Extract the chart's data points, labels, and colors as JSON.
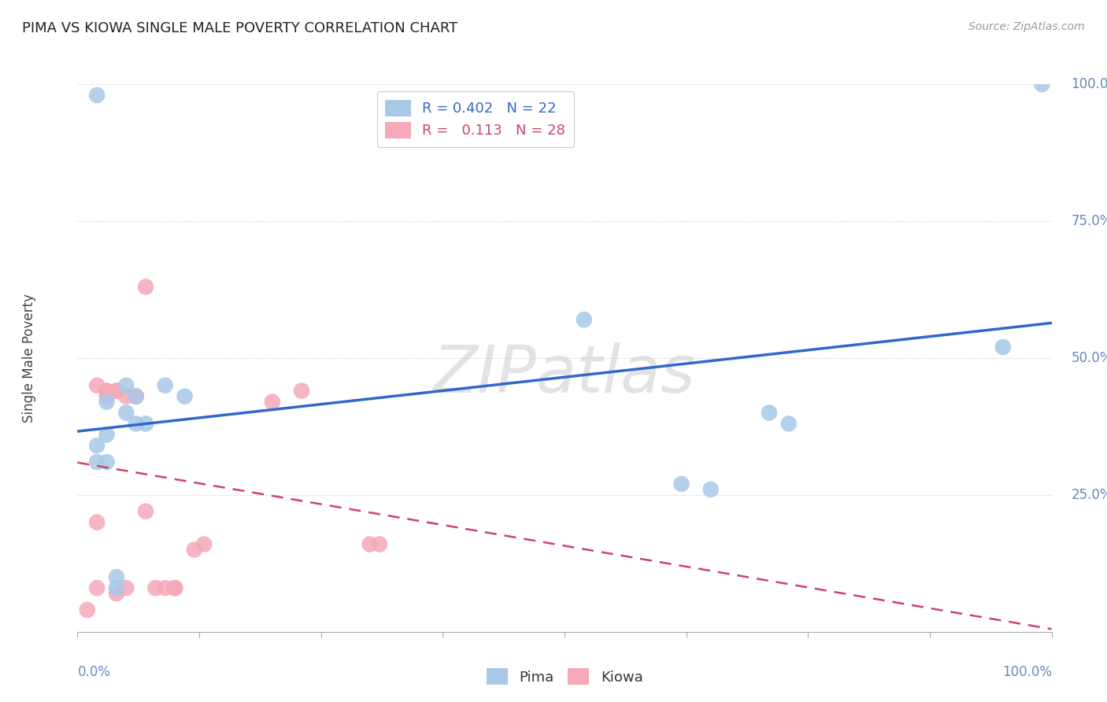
{
  "title": "PIMA VS KIOWA SINGLE MALE POVERTY CORRELATION CHART",
  "source_text": "Source: ZipAtlas.com",
  "ylabel": "Single Male Poverty",
  "pima_R": 0.402,
  "pima_N": 22,
  "kiowa_R": 0.113,
  "kiowa_N": 28,
  "pima_color": "#A8C8E8",
  "kiowa_color": "#F4A8B8",
  "pima_line_color": "#3366CC",
  "kiowa_line_color": "#CC4466",
  "watermark_text": "ZIPatlas",
  "xlim": [
    0.0,
    1.0
  ],
  "ylim": [
    0.0,
    1.0
  ],
  "pima_x": [
    0.02,
    0.02,
    0.02,
    0.03,
    0.03,
    0.03,
    0.04,
    0.04,
    0.05,
    0.05,
    0.06,
    0.06,
    0.07,
    0.09,
    0.11,
    0.52,
    0.62,
    0.65,
    0.71,
    0.73,
    0.95,
    0.99
  ],
  "pima_y": [
    0.98,
    0.34,
    0.31,
    0.42,
    0.36,
    0.31,
    0.1,
    0.08,
    0.45,
    0.4,
    0.43,
    0.38,
    0.38,
    0.45,
    0.43,
    0.57,
    0.27,
    0.26,
    0.4,
    0.38,
    0.52,
    1.0
  ],
  "kiowa_x": [
    0.01,
    0.02,
    0.02,
    0.02,
    0.03,
    0.03,
    0.03,
    0.04,
    0.04,
    0.04,
    0.05,
    0.05,
    0.06,
    0.06,
    0.06,
    0.06,
    0.07,
    0.07,
    0.08,
    0.09,
    0.1,
    0.1,
    0.12,
    0.13,
    0.2,
    0.23,
    0.3,
    0.31
  ],
  "kiowa_y": [
    0.04,
    0.08,
    0.2,
    0.45,
    0.44,
    0.44,
    0.43,
    0.44,
    0.44,
    0.07,
    0.43,
    0.08,
    0.43,
    0.43,
    0.43,
    0.43,
    0.63,
    0.22,
    0.08,
    0.08,
    0.08,
    0.08,
    0.15,
    0.16,
    0.42,
    0.44,
    0.16,
    0.16
  ],
  "background_color": "#FFFFFF",
  "grid_color": "#CCCCCC",
  "tick_color": "#6688BB",
  "title_color": "#222222",
  "source_color": "#999999"
}
